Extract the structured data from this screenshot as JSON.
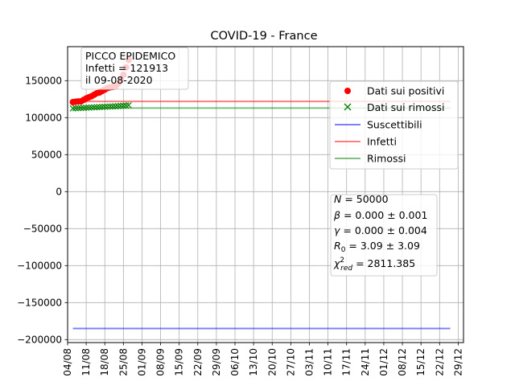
{
  "chart_data": {
    "type": "line",
    "title": "COVID-19 - France",
    "xlabel": "",
    "ylabel": "",
    "x_tick_labels": [
      "04/08",
      "11/08",
      "18/08",
      "25/08",
      "01/09",
      "08/09",
      "15/09",
      "22/09",
      "29/09",
      "06/10",
      "13/10",
      "20/10",
      "27/10",
      "03/11",
      "10/11",
      "17/11",
      "24/11",
      "01/12",
      "08/12",
      "15/12",
      "22/12",
      "29/12"
    ],
    "x_range": [
      "2020-08-04",
      "2020-12-31"
    ],
    "y_ticks": [
      150000,
      100000,
      50000,
      0,
      -50000,
      -100000,
      -150000,
      -200000
    ],
    "y_tick_labels": [
      "150000",
      "100000",
      "50000",
      "0",
      "−50000",
      "−100000",
      "−150000",
      "−200000"
    ],
    "ylim": [
      -204000,
      196000
    ],
    "grid": true,
    "series": [
      {
        "name": "Dati sui positivi",
        "kind": "scatter",
        "marker": "circle",
        "color": "#ff0000",
        "x": [
          "2020-08-06",
          "2020-08-07",
          "2020-08-08",
          "2020-08-09",
          "2020-08-10",
          "2020-08-11",
          "2020-08-12",
          "2020-08-13",
          "2020-08-14",
          "2020-08-15",
          "2020-08-16",
          "2020-08-17",
          "2020-08-18",
          "2020-08-19",
          "2020-08-20",
          "2020-08-21",
          "2020-08-22",
          "2020-08-23",
          "2020-08-24",
          "2020-08-25",
          "2020-08-26",
          "2020-08-27"
        ],
        "y": [
          121000,
          121500,
          122000,
          121913,
          124000,
          126000,
          127500,
          129000,
          131000,
          133000,
          134000,
          136000,
          138000,
          140000,
          141000,
          141500,
          142000,
          146000,
          151000,
          158000,
          168000,
          178000
        ]
      },
      {
        "name": "Dati sui rimossi",
        "kind": "scatter",
        "marker": "x",
        "color": "#008000",
        "x": [
          "2020-08-06",
          "2020-08-07",
          "2020-08-08",
          "2020-08-09",
          "2020-08-10",
          "2020-08-11",
          "2020-08-12",
          "2020-08-13",
          "2020-08-14",
          "2020-08-15",
          "2020-08-16",
          "2020-08-17",
          "2020-08-18",
          "2020-08-19",
          "2020-08-20",
          "2020-08-21",
          "2020-08-22",
          "2020-08-23",
          "2020-08-24",
          "2020-08-25",
          "2020-08-26",
          "2020-08-27"
        ],
        "y": [
          112500,
          112700,
          112900,
          113000,
          113200,
          113400,
          113600,
          113800,
          114000,
          114100,
          114300,
          114500,
          114700,
          114900,
          115100,
          115200,
          115400,
          115600,
          115900,
          116200,
          116500,
          116800
        ]
      },
      {
        "name": "Suscettibili",
        "kind": "line",
        "color": "#0000ff",
        "x": [
          "2020-08-06",
          "2020-12-26"
        ],
        "y": [
          -185000,
          -185000
        ]
      },
      {
        "name": "Infetti",
        "kind": "line",
        "color": "#ff0000",
        "x": [
          "2020-08-06",
          "2020-12-26"
        ],
        "y": [
          121913,
          121913
        ]
      },
      {
        "name": "Rimossi",
        "kind": "line",
        "color": "#008000",
        "x": [
          "2020-08-06",
          "2020-12-26"
        ],
        "y": [
          113000,
          113000
        ]
      }
    ],
    "legend": {
      "placement": "upper-right",
      "entries": [
        "Dati sui positivi",
        "Dati sui rimossi",
        "Suscettibili",
        "Infetti",
        "Rimossi"
      ]
    },
    "annotations": {
      "peak_box": {
        "lines": [
          "PICCO EPIDEMICO",
          "Infetti = 121913",
          "il 09-08-2020"
        ],
        "placement": "upper-left"
      },
      "params_box": {
        "placement": "lower-right",
        "N": "50000",
        "beta": "0.000 ± 0.001",
        "gamma": "0.000 ± 0.004",
        "R0": "3.09 ± 3.09",
        "chi2": "2811.385"
      }
    }
  }
}
